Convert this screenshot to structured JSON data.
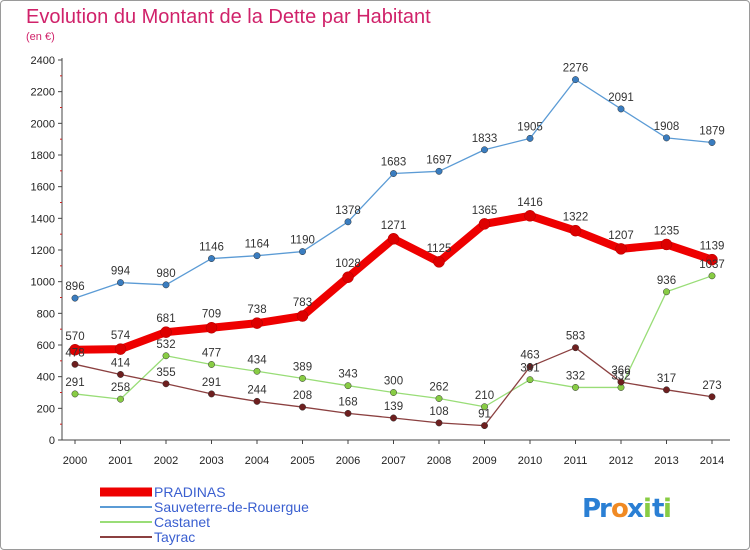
{
  "chart_data": {
    "type": "line",
    "title": "Evolution du Montant de la Dette par Habitant",
    "subtitle": "(en €)",
    "xlabel": "",
    "ylabel": "",
    "categories": [
      "2000",
      "2001",
      "2002",
      "2003",
      "2004",
      "2005",
      "2006",
      "2007",
      "2008",
      "2009",
      "2010",
      "2011",
      "2012",
      "2013",
      "2014"
    ],
    "ylim": [
      0,
      2400
    ],
    "yticks": [
      "0",
      "200",
      "400",
      "600",
      "800",
      "1000",
      "1200",
      "1400",
      "1600",
      "1800",
      "2000",
      "2200",
      "2400"
    ],
    "grid": false,
    "legend_position": "bottom-left",
    "series": [
      {
        "name": "Sauveterre-de-Rouergue",
        "color": "#5b9bd5",
        "marker": "#3a7dc0",
        "values": [
          896,
          994,
          980,
          1146,
          1164,
          1190,
          1378,
          1683,
          1697,
          1833,
          1905,
          2276,
          2091,
          1908,
          1879
        ],
        "labels": [
          "896",
          "994",
          "980",
          "1146",
          "1164",
          "1190",
          "1378",
          "1683",
          "1697",
          "1833",
          "1905",
          "2276",
          "2091",
          "1908",
          "1879"
        ]
      },
      {
        "name": "Castanet",
        "color": "#99dd77",
        "marker": "#88cc44",
        "values": [
          291,
          258,
          532,
          477,
          434,
          389,
          343,
          300,
          262,
          210,
          381,
          332,
          332,
          936,
          1037
        ],
        "labels": [
          "291",
          "258",
          "532",
          "477",
          "434",
          "389",
          "343",
          "300",
          "262",
          "210",
          "381",
          "332",
          "332",
          "936",
          "1037"
        ]
      },
      {
        "name": "Tayrac",
        "color": "#8b4040",
        "marker": "#6e1f1f",
        "values": [
          478,
          414,
          355,
          291,
          244,
          208,
          168,
          139,
          108,
          91,
          463,
          583,
          366,
          317,
          273
        ],
        "labels": [
          "478",
          "414",
          "355",
          "291",
          "244",
          "208",
          "168",
          "139",
          "108",
          "91",
          "463",
          "583",
          "366",
          "317",
          "273"
        ]
      },
      {
        "name": "PRADINAS",
        "color": "#ee0000",
        "marker": "#dd0000",
        "values": [
          570,
          574,
          681,
          709,
          738,
          783,
          1028,
          1271,
          1125,
          1365,
          1416,
          1322,
          1207,
          1235,
          1139
        ],
        "labels": [
          "570",
          "574",
          "681",
          "709",
          "738",
          "783",
          "1028",
          "1271",
          "1125",
          "1365",
          "1416",
          "1322",
          "1207",
          "1235",
          "1139"
        ]
      }
    ]
  },
  "legend": {
    "items": [
      {
        "name": "PRADINAS",
        "color": "#ee0000",
        "text_color": "#3a5fd0"
      },
      {
        "name": "Sauveterre-de-Rouergue",
        "color": "#5b9bd5",
        "text_color": "#3a5fd0"
      },
      {
        "name": "Castanet",
        "color": "#99dd77",
        "text_color": "#3a5fd0"
      },
      {
        "name": "Tayrac",
        "color": "#8b4040",
        "text_color": "#3a5fd0"
      }
    ]
  },
  "logo": {
    "letters": [
      "P",
      "r",
      "o",
      "x",
      "i",
      "t",
      "i"
    ],
    "colors": [
      "#2a7fd4",
      "#2a7fd4",
      "#f08a24",
      "#2a7fd4",
      "#88cc44",
      "#2a7fd4",
      "#88cc44"
    ]
  }
}
